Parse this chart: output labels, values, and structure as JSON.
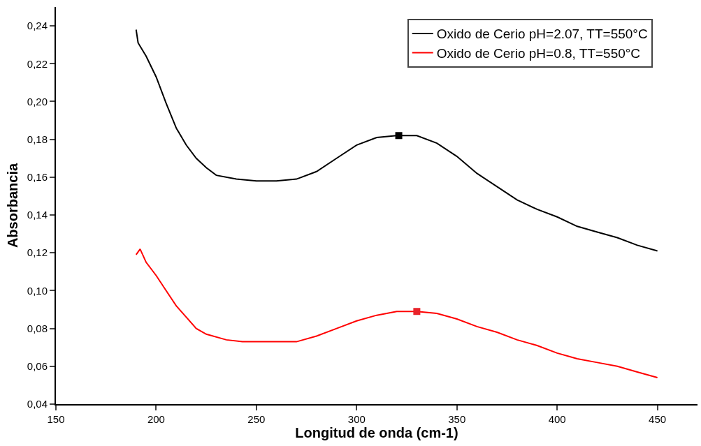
{
  "chart_data": {
    "type": "line",
    "xlabel": "Longitud de onda (cm-1)",
    "ylabel": "Absorbancia",
    "xlim": [
      150,
      470
    ],
    "xticks": [
      150,
      200,
      250,
      300,
      350,
      400,
      450
    ],
    "ylim": [
      0.04,
      0.25
    ],
    "yticks": [
      {
        "value": 0.04,
        "label": "0,04"
      },
      {
        "value": 0.06,
        "label": "0,06"
      },
      {
        "value": 0.08,
        "label": "0,08"
      },
      {
        "value": 0.1,
        "label": "0,10"
      },
      {
        "value": 0.12,
        "label": "0,12"
      },
      {
        "value": 0.14,
        "label": "0,14"
      },
      {
        "value": 0.16,
        "label": "0,16"
      },
      {
        "value": 0.18,
        "label": "0,18"
      },
      {
        "value": 0.2,
        "label": "0,20"
      },
      {
        "value": 0.22,
        "label": "0,22"
      },
      {
        "value": 0.24,
        "label": "0,24"
      }
    ],
    "legend": "top right",
    "line_style": "solid",
    "series": [
      {
        "name": "Oxido de Cerio pH=2.07, TT=550°C",
        "color": "#000000",
        "x": [
          190,
          191,
          195,
          200,
          205,
          210,
          215,
          220,
          225,
          230,
          240,
          250,
          260,
          270,
          280,
          290,
          300,
          310,
          320,
          330,
          340,
          350,
          360,
          370,
          380,
          390,
          400,
          410,
          420,
          430,
          440,
          450
        ],
        "values": [
          0.238,
          0.231,
          0.224,
          0.213,
          0.199,
          0.186,
          0.177,
          0.17,
          0.165,
          0.161,
          0.159,
          0.158,
          0.158,
          0.159,
          0.163,
          0.17,
          0.177,
          0.181,
          0.182,
          0.182,
          0.178,
          0.171,
          0.162,
          0.155,
          0.148,
          0.143,
          0.139,
          0.134,
          0.131,
          0.128,
          0.124,
          0.121
        ]
      },
      {
        "name": "Oxido de Cerio pH=0.8, TT=550°C",
        "color": "#ff0000",
        "x": [
          190,
          192,
          195,
          200,
          205,
          210,
          215,
          220,
          225,
          235,
          243,
          250,
          270,
          280,
          290,
          300,
          310,
          320,
          330,
          340,
          350,
          360,
          370,
          380,
          390,
          400,
          410,
          420,
          430,
          440,
          450
        ],
        "values": [
          0.119,
          0.122,
          0.115,
          0.108,
          0.1,
          0.092,
          0.086,
          0.08,
          0.077,
          0.074,
          0.073,
          0.073,
          0.073,
          0.076,
          0.08,
          0.084,
          0.087,
          0.089,
          0.089,
          0.088,
          0.085,
          0.081,
          0.078,
          0.074,
          0.071,
          0.067,
          0.064,
          0.062,
          0.06,
          0.057,
          0.054
        ]
      },
      {
        "type": "scatter",
        "marker": "square",
        "color": "#000000",
        "x": [
          321
        ],
        "values": [
          0.182
        ]
      },
      {
        "type": "scatter",
        "marker": "square",
        "color": "#e8232a",
        "x": [
          330
        ],
        "values": [
          0.089
        ]
      }
    ]
  }
}
